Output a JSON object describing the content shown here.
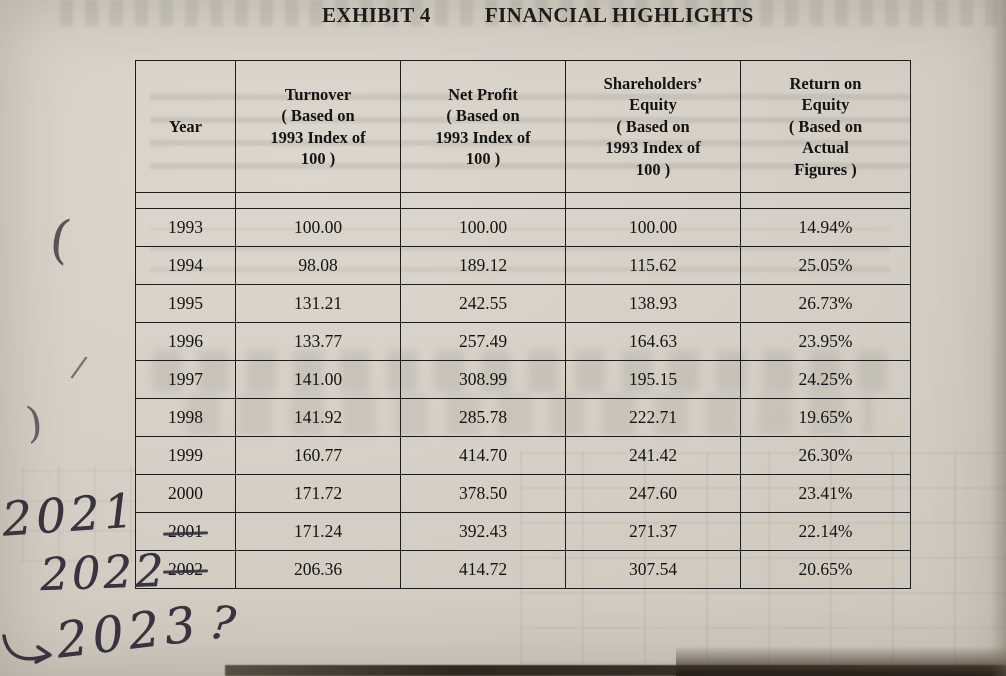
{
  "header": {
    "exhibit_label": "EXHIBIT 4",
    "title": "FINANCIAL HIGHLIGHTS"
  },
  "table": {
    "columns": [
      "Year",
      "Turnover\n( Based on\n1993 Index of\n100 )",
      "Net Profit\n( Based on\n1993 Index of\n100 )",
      "Shareholders’\nEquity\n( Based on\n1993 Index of\n100 )",
      "Return on\nEquity\n( Based on\nActual\nFigures )"
    ],
    "rows": [
      {
        "year": "1993",
        "turnover": "100.00",
        "net_profit": "100.00",
        "shareholders_equity": "100.00",
        "return_on_equity": "14.94%",
        "struck": false
      },
      {
        "year": "1994",
        "turnover": "98.08",
        "net_profit": "189.12",
        "shareholders_equity": "115.62",
        "return_on_equity": "25.05%",
        "struck": false
      },
      {
        "year": "1995",
        "turnover": "131.21",
        "net_profit": "242.55",
        "shareholders_equity": "138.93",
        "return_on_equity": "26.73%",
        "struck": false
      },
      {
        "year": "1996",
        "turnover": "133.77",
        "net_profit": "257.49",
        "shareholders_equity": "164.63",
        "return_on_equity": "23.95%",
        "struck": false
      },
      {
        "year": "1997",
        "turnover": "141.00",
        "net_profit": "308.99",
        "shareholders_equity": "195.15",
        "return_on_equity": "24.25%",
        "struck": false
      },
      {
        "year": "1998",
        "turnover": "141.92",
        "net_profit": "285.78",
        "shareholders_equity": "222.71",
        "return_on_equity": "19.65%",
        "struck": false
      },
      {
        "year": "1999",
        "turnover": "160.77",
        "net_profit": "414.70",
        "shareholders_equity": "241.42",
        "return_on_equity": "26.30%",
        "struck": false
      },
      {
        "year": "2000",
        "turnover": "171.72",
        "net_profit": "378.50",
        "shareholders_equity": "247.60",
        "return_on_equity": "23.41%",
        "struck": false
      },
      {
        "year": "2001",
        "turnover": "171.24",
        "net_profit": "392.43",
        "shareholders_equity": "271.37",
        "return_on_equity": "22.14%",
        "struck": true
      },
      {
        "year": "2002",
        "turnover": "206.36",
        "net_profit": "414.72",
        "shareholders_equity": "307.54",
        "return_on_equity": "20.65%",
        "struck": true
      }
    ]
  },
  "annotations": {
    "handwritten_year_2001": "2021",
    "handwritten_year_2002": "2022",
    "handwritten_next_year": "2023",
    "handwritten_question": "?",
    "arrow_icon": "curved-right-arrow",
    "stray_marks": [
      "(",
      "/",
      ")"
    ]
  },
  "colors": {
    "ink": "#39333f",
    "paper": "#d4cec4",
    "table_ink": "#1c1c1c"
  }
}
